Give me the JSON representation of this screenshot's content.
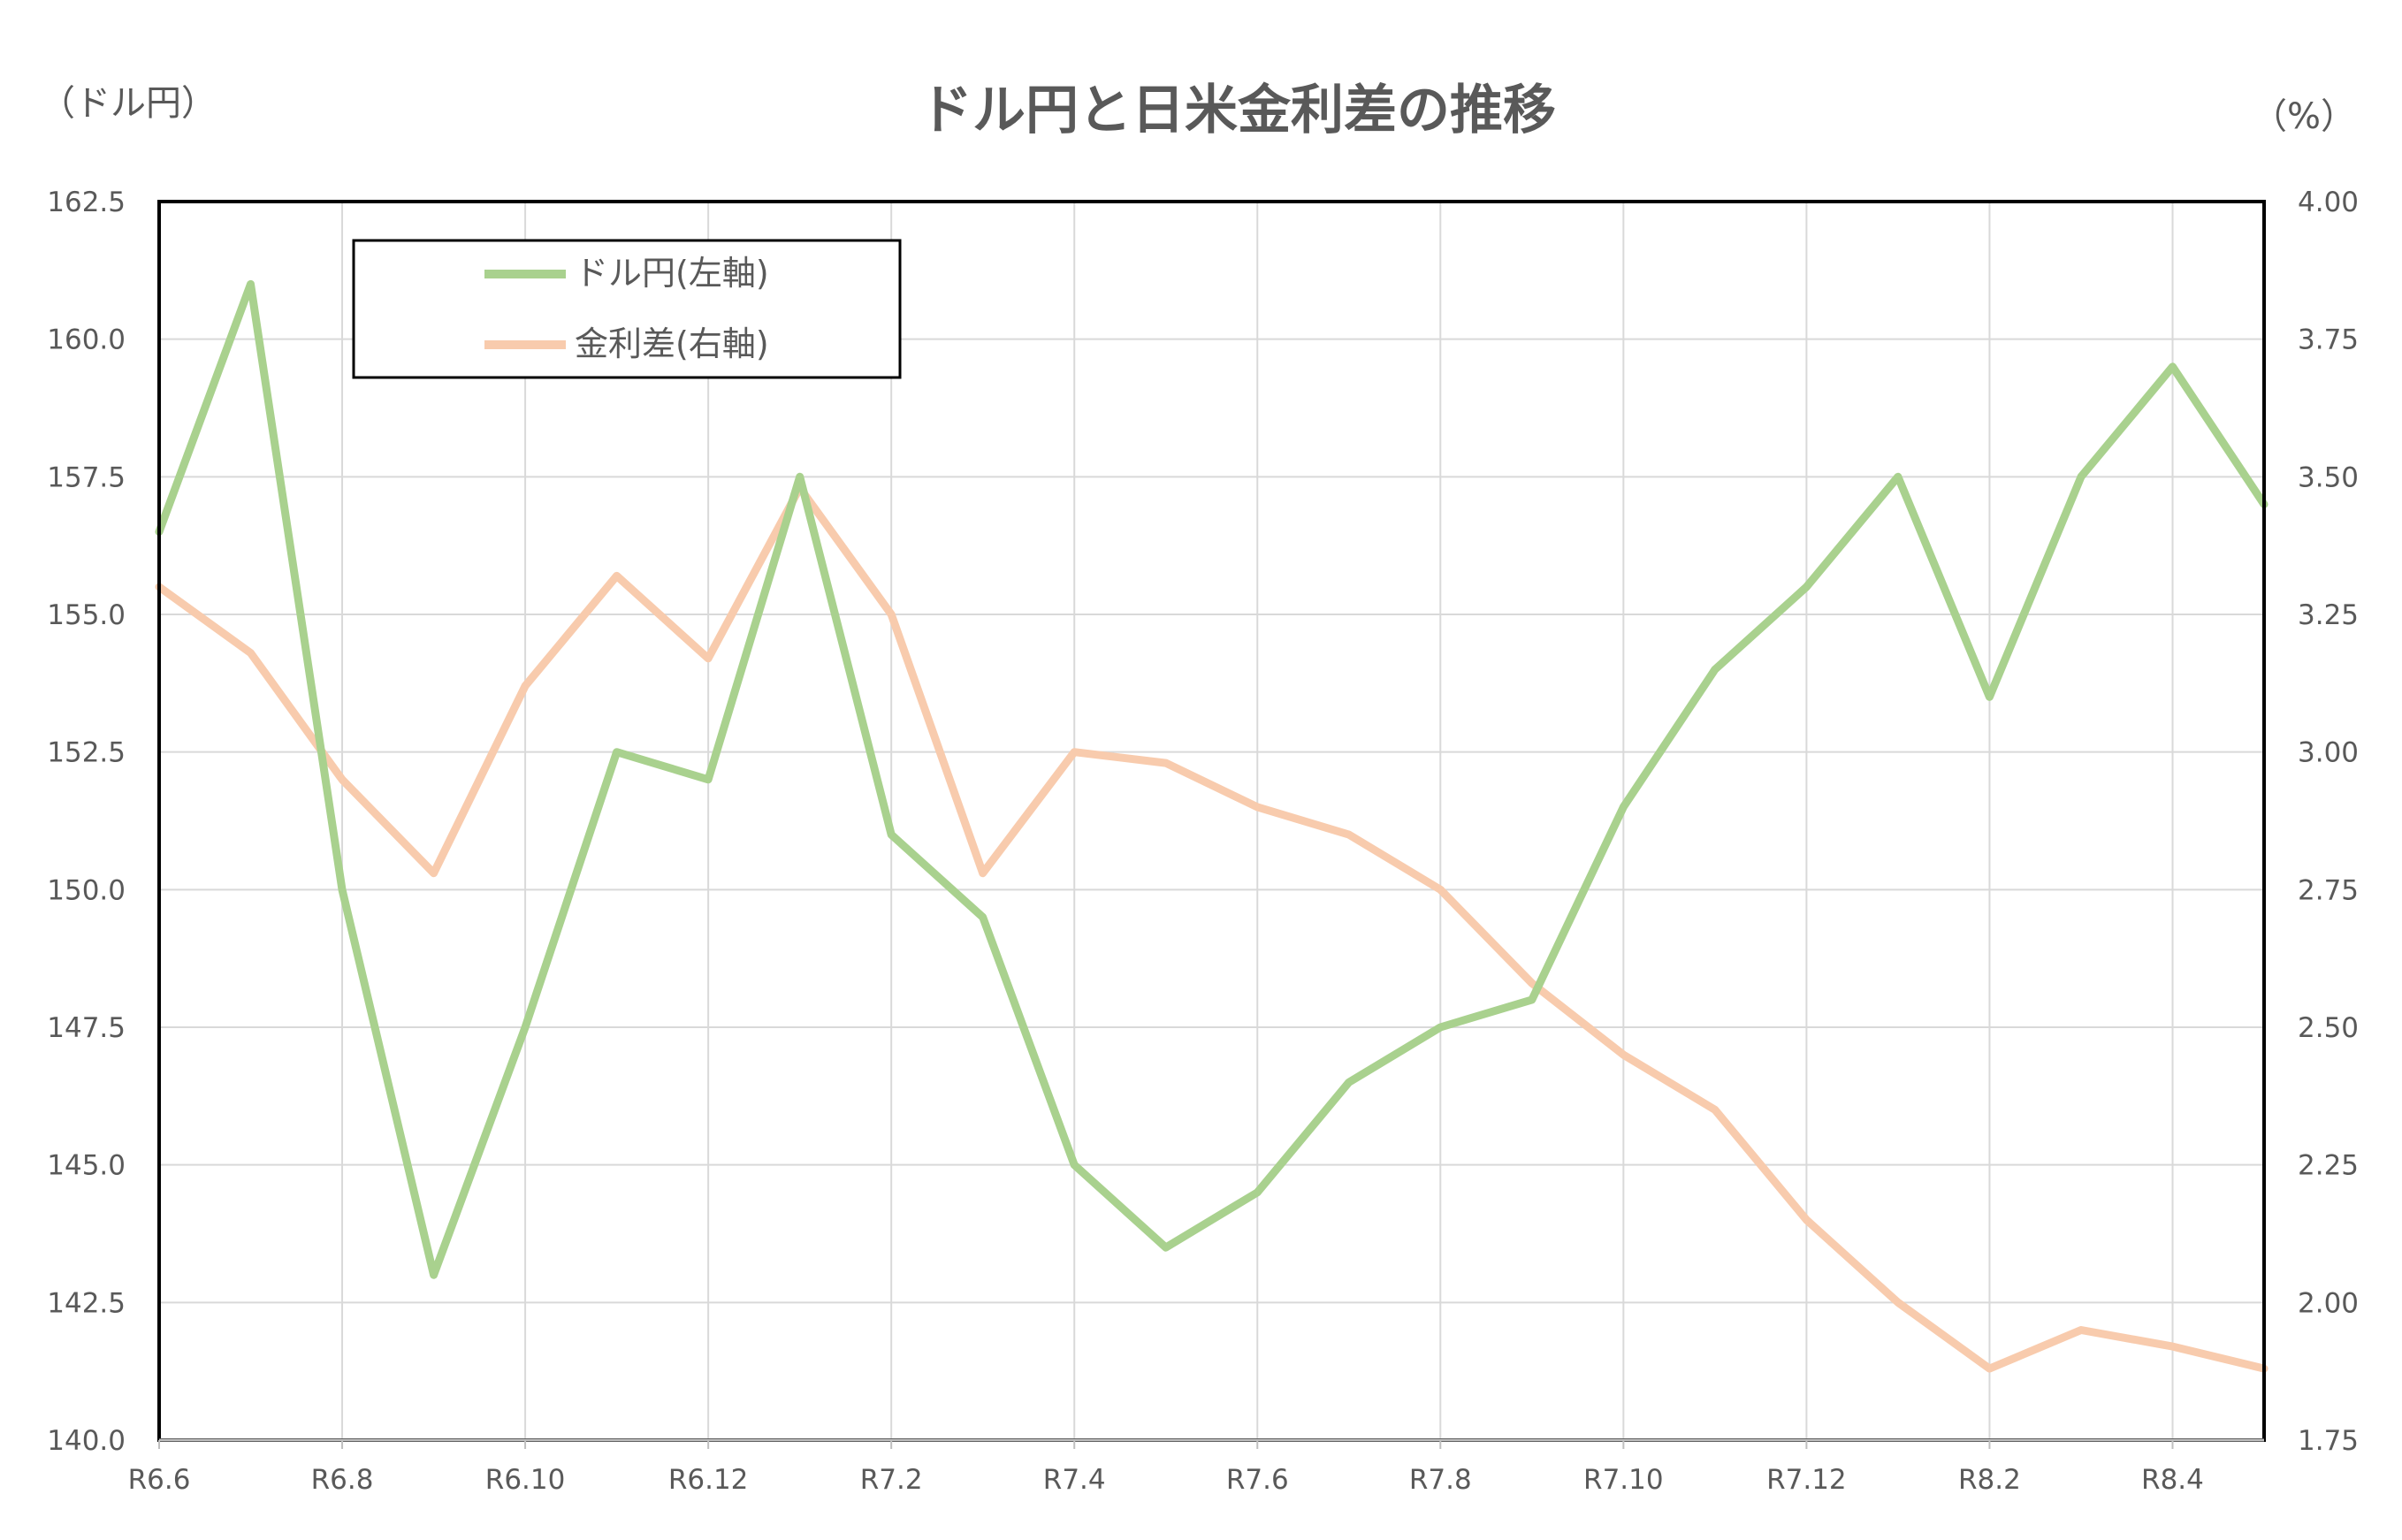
{
  "chart_data": {
    "type": "line",
    "title": "ドル円と日米金利差の推移",
    "left_unit": "（ドル円）",
    "right_unit": "（%）",
    "x": [
      "R6.6",
      "R6.7",
      "R6.8",
      "R6.9",
      "R6.10",
      "R6.11",
      "R6.12",
      "R7.1",
      "R7.2",
      "R7.3",
      "R7.4",
      "R7.5",
      "R7.6",
      "R7.7",
      "R7.8",
      "R7.9",
      "R7.10",
      "R7.11",
      "R7.12",
      "R8.1",
      "R8.2",
      "R8.3",
      "R8.4",
      "R8.5"
    ],
    "x_tick_labels": [
      "R6.6",
      "R6.8",
      "R6.10",
      "R6.12",
      "R7.2",
      "R7.4",
      "R7.6",
      "R7.8",
      "R7.10",
      "R7.12",
      "R8.2",
      "R8.4"
    ],
    "y_left": {
      "ylim": [
        140.0,
        162.5
      ],
      "ticks": [
        "140.0",
        "142.5",
        "145.0",
        "147.5",
        "150.0",
        "152.5",
        "155.0",
        "157.5",
        "160.0",
        "162.5"
      ]
    },
    "y_right": {
      "ylim": [
        1.75,
        4.0
      ],
      "ticks": [
        "1.75",
        "2.00",
        "2.25",
        "2.50",
        "2.75",
        "3.00",
        "3.25",
        "3.50",
        "3.75",
        "4.00"
      ]
    },
    "grid": true,
    "legend_position": "top-left",
    "series": [
      {
        "name": "ドル円(左軸)",
        "axis": "left",
        "color": "#a9d18e",
        "values": [
          156.5,
          161.0,
          150.0,
          143.0,
          147.5,
          152.5,
          152.0,
          157.5,
          151.0,
          149.5,
          145.0,
          143.5,
          144.5,
          146.5,
          147.5,
          148.0,
          151.5,
          154.0,
          155.5,
          157.5,
          153.5,
          157.5,
          159.5,
          157.0
        ]
      },
      {
        "name": "金利差(右軸)",
        "axis": "right",
        "color": "#f8cbad",
        "values": [
          3.3,
          3.18,
          2.95,
          2.78,
          3.12,
          3.32,
          3.17,
          3.48,
          3.25,
          2.78,
          3.0,
          2.98,
          2.9,
          2.85,
          2.75,
          2.58,
          2.45,
          2.35,
          2.15,
          2.0,
          1.88,
          1.95,
          1.92,
          1.88
        ]
      }
    ]
  }
}
